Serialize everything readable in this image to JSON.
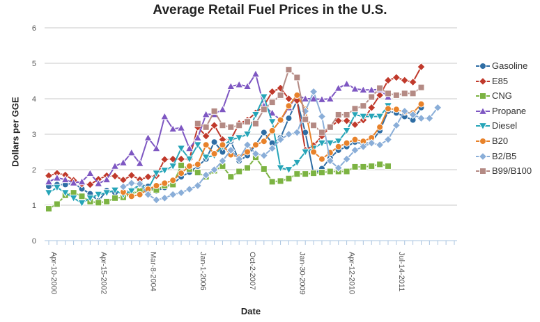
{
  "chart_data": {
    "type": "line",
    "title": "Average Retail Fuel Prices in the U.S.",
    "xlabel": "Date",
    "ylabel": "Dollars per GGE",
    "ylim": [
      0,
      6
    ],
    "yticks": [
      "0",
      "1",
      "2",
      "3",
      "4",
      "5",
      "6"
    ],
    "x_tick_labels": [
      "Apr-10-2000",
      "Apr-15-2002",
      "Mar-8-2004",
      "Jan-1-2006",
      "Oct-2-2007",
      "Jan-30-2009",
      "Apr-12-2010",
      "Jul-14-2011"
    ],
    "grid": "horizontal",
    "legend_position": "right",
    "series": [
      {
        "name": "Gasoline",
        "color": "#2e6da4",
        "marker": "circle",
        "values": [
          1.53,
          1.58,
          1.58,
          1.62,
          1.46,
          1.32,
          1.12,
          1.41,
          1.35,
          1.36,
          1.42,
          1.58,
          1.53,
          1.4,
          1.5,
          1.6,
          1.8,
          1.93,
          2.1,
          2.3,
          2.78,
          2.5,
          2.8,
          2.25,
          2.4,
          2.7,
          3.05,
          2.75,
          2.9,
          3.45,
          3.95,
          3.05,
          1.88,
          2.03,
          2.33,
          2.55,
          2.65,
          2.78,
          2.73,
          2.78,
          3.1,
          3.65,
          3.6,
          3.5,
          3.4,
          3.75
        ]
      },
      {
        "name": "E85",
        "color": "#c0392b",
        "marker": "diamond",
        "values": [
          1.83,
          1.9,
          1.85,
          1.7,
          1.6,
          1.58,
          1.73,
          1.83,
          1.82,
          1.71,
          1.84,
          1.72,
          1.8,
          1.83,
          2.29,
          2.3,
          2.3,
          2.3,
          3.2,
          2.95,
          3.25,
          2.85,
          2.85,
          3.3,
          3.4,
          3.6,
          3.8,
          4.2,
          4.3,
          4.0,
          3.95,
          2.55,
          2.68,
          2.95,
          3.2,
          3.38,
          3.38,
          3.27,
          3.4,
          3.75,
          4.1,
          4.52,
          4.6,
          4.52,
          4.47,
          4.9
        ]
      },
      {
        "name": "CNG",
        "color": "#7cb342",
        "marker": "square",
        "values": [
          0.9,
          1.03,
          1.28,
          1.35,
          1.25,
          1.1,
          1.07,
          1.1,
          1.2,
          1.22,
          1.32,
          1.4,
          1.43,
          1.43,
          1.55,
          1.58,
          2.12,
          2.02,
          1.92,
          1.8,
          1.97,
          2.1,
          1.8,
          1.95,
          2.05,
          2.35,
          2.02,
          1.66,
          1.68,
          1.75,
          1.88,
          1.88,
          1.9,
          1.92,
          1.95,
          1.95,
          1.95,
          2.08,
          2.08,
          2.1,
          2.15,
          2.1
        ]
      },
      {
        "name": "Propane",
        "color": "#7e57c2",
        "marker": "triangle-up",
        "values": [
          1.66,
          1.77,
          1.72,
          1.63,
          1.66,
          1.9,
          1.61,
          1.72,
          2.1,
          2.2,
          2.48,
          2.18,
          2.9,
          2.6,
          3.5,
          3.15,
          3.18,
          2.6,
          2.9,
          3.56,
          3.56,
          3.7,
          4.35,
          4.4,
          4.35,
          4.7,
          3.8,
          3.6,
          3.4,
          3.75,
          4.1,
          4.0,
          4.0,
          3.98,
          4.0,
          4.3,
          4.42,
          4.28,
          4.25,
          4.25,
          4.26,
          4.05
        ]
      },
      {
        "name": "Diesel",
        "color": "#26a5b8",
        "marker": "triangle-down",
        "values": [
          1.35,
          1.5,
          1.35,
          1.2,
          1.06,
          1.2,
          1.3,
          1.35,
          1.42,
          1.3,
          1.4,
          1.58,
          1.45,
          1.9,
          1.98,
          2.1,
          2.6,
          2.3,
          2.7,
          2.35,
          2.4,
          2.65,
          2.85,
          2.9,
          3.0,
          3.55,
          4.05,
          3.35,
          2.05,
          2.0,
          2.2,
          2.5,
          2.6,
          2.75,
          2.75,
          2.8,
          3.1,
          3.55,
          3.5,
          3.5,
          3.5,
          3.8
        ]
      },
      {
        "name": "B20",
        "color": "#e8822a",
        "marker": "circle",
        "values": [
          1.37,
          1.25,
          1.3,
          1.45,
          1.55,
          1.62,
          1.7,
          1.9,
          2.1,
          2.15,
          2.7,
          2.45,
          2.7,
          2.42,
          2.35,
          2.5,
          2.7,
          2.8,
          3.1,
          3.4,
          3.8,
          4.1,
          3.7,
          2.5,
          2.3,
          2.48,
          2.65,
          2.75,
          2.85,
          2.8,
          2.9,
          3.2,
          3.72,
          3.7,
          3.62,
          3.6,
          3.85
        ]
      },
      {
        "name": "B2/B5",
        "color": "#8aaed8",
        "marker": "diamond",
        "values": [
          1.52,
          1.62,
          1.6,
          1.3,
          1.15,
          1.2,
          1.3,
          1.35,
          1.45,
          1.55,
          1.85,
          2.0,
          2.25,
          2.55,
          2.3,
          2.7,
          2.45,
          2.4,
          2.6,
          2.85,
          3.0,
          3.05,
          3.65,
          4.2,
          3.5,
          2.25,
          2.05,
          2.3,
          2.55,
          2.65,
          2.75,
          2.7,
          2.85,
          3.25,
          3.65,
          3.55,
          3.45,
          3.45,
          3.75
        ]
      },
      {
        "name": "B99/B100",
        "color": "#b48a84",
        "marker": "square",
        "values": [
          3.3,
          3.2,
          3.65,
          3.25,
          3.2,
          3.25,
          3.35,
          3.3,
          3.7,
          3.9,
          4.1,
          4.82,
          4.6,
          3.42,
          3.25,
          3.05,
          3.2,
          3.55,
          3.55,
          3.72,
          3.8,
          4.05,
          4.3,
          4.15,
          4.1,
          4.15,
          4.15,
          4.32
        ]
      }
    ]
  }
}
